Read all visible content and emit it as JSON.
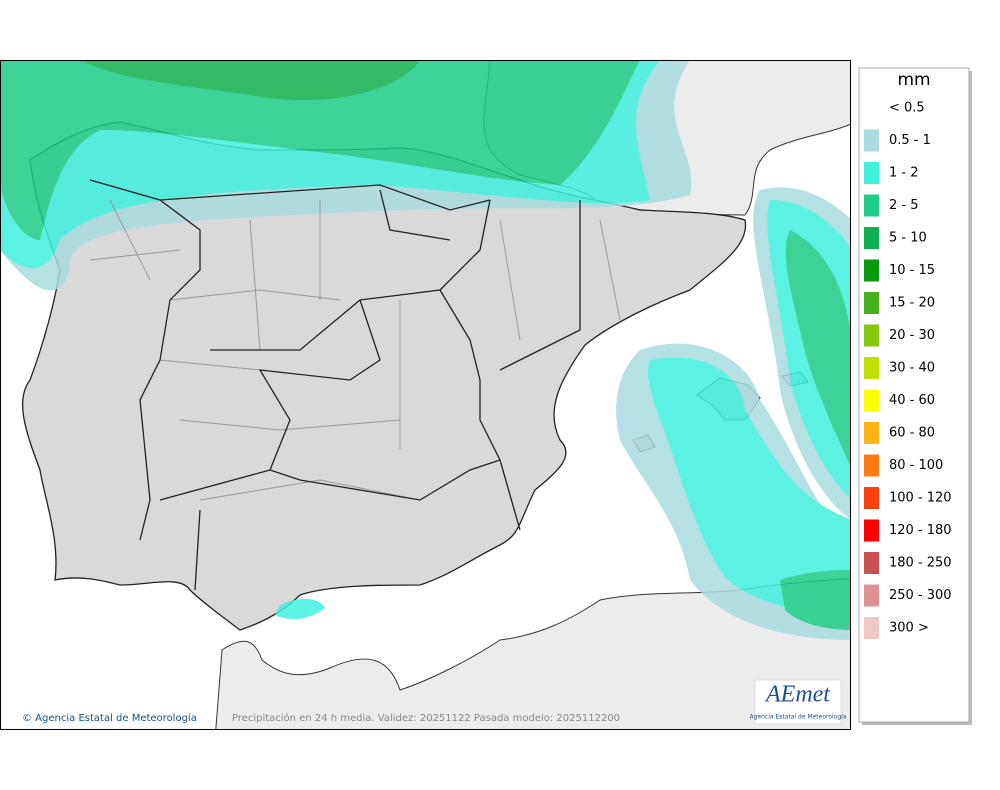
{
  "map": {
    "footer_left": "© Agencia Estatal de Meteorología",
    "footer_center": "Precipitación en 24 h media. Validez: 20251122 Pasada modelo: 2025112200",
    "logo": {
      "name": "AEmet",
      "subtitle": "Agencia Estatal de Meteorología"
    }
  },
  "legend": {
    "unit": "mm",
    "items": [
      {
        "label": "< 0.5",
        "color": null
      },
      {
        "label": "0.5 - 1",
        "color": "#a9dbe0"
      },
      {
        "label": "1 - 2",
        "color": "#3ff0df"
      },
      {
        "label": "2 - 5",
        "color": "#1ecb87"
      },
      {
        "label": "5 - 10",
        "color": "#10b04e"
      },
      {
        "label": "10 - 15",
        "color": "#0a9a0e"
      },
      {
        "label": "15 - 20",
        "color": "#46b01c"
      },
      {
        "label": "20 - 30",
        "color": "#84c80e"
      },
      {
        "label": "30 - 40",
        "color": "#c2e000"
      },
      {
        "label": "40 - 60",
        "color": "#ffff00"
      },
      {
        "label": "60 - 80",
        "color": "#ffb414"
      },
      {
        "label": "80 - 100",
        "color": "#ff7a10"
      },
      {
        "label": "100 - 120",
        "color": "#ff4010"
      },
      {
        "label": "120 - 180",
        "color": "#ff0000"
      },
      {
        "label": "180 - 250",
        "color": "#cc5050"
      },
      {
        "label": "250 - 300",
        "color": "#e09090"
      },
      {
        "label": "300 >",
        "color": "#f0c8c8"
      }
    ]
  }
}
